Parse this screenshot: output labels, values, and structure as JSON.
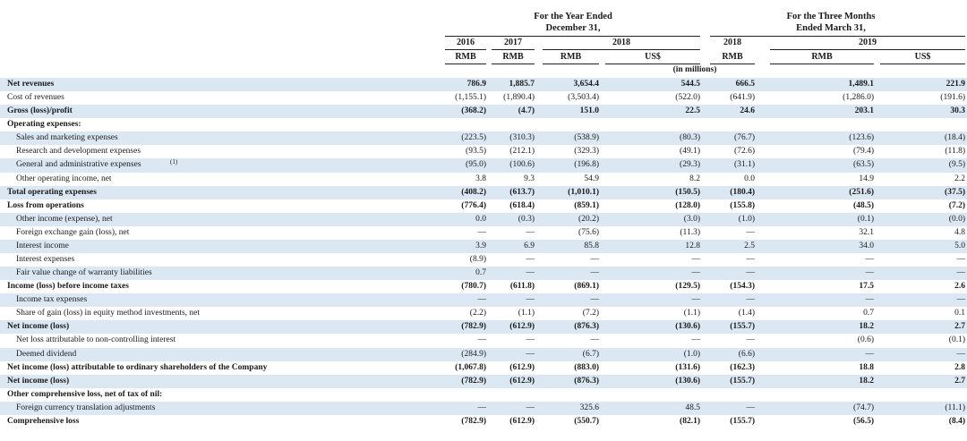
{
  "header": {
    "year_group": [
      "For the Year Ended",
      "December 31,"
    ],
    "quarter_group": [
      "For the Three Months",
      "Ended March 31,"
    ],
    "year_2018": "2018",
    "quarter_2019": "2019",
    "columns": [
      {
        "year": "2016",
        "currency": "RMB"
      },
      {
        "year": "2017",
        "currency": "RMB"
      },
      {
        "year": "",
        "currency": "RMB"
      },
      {
        "year": "",
        "currency": "US$"
      },
      {
        "year": "2018",
        "currency": "RMB"
      },
      {
        "year": "",
        "currency": "RMB"
      },
      {
        "year": "",
        "currency": "US$"
      }
    ],
    "units": "(in millions)"
  },
  "rows": [
    {
      "label": "Net revenues",
      "values": [
        "786.9",
        "1,885.7",
        "3,654.4",
        "544.5",
        "666.5",
        "1,489.1",
        "221.9"
      ],
      "bold": true,
      "shade": true
    },
    {
      "label": "Cost of revenues",
      "values": [
        "(1,155.1)",
        "(1,890.4)",
        "(3,503.4)",
        "(522.0)",
        "(641.9)",
        "(1,286.0)",
        "(191.6)"
      ]
    },
    {
      "label": "Gross (loss)/profit",
      "values": [
        "(368.2)",
        "(4.7)",
        "151.0",
        "22.5",
        "24.6",
        "203.1",
        "30.3"
      ],
      "bold": true,
      "shade": true
    },
    {
      "label": "Operating expenses:",
      "values": [
        "",
        "",
        "",
        "",
        "",
        "",
        ""
      ],
      "bold": true
    },
    {
      "label": "Sales and marketing expenses",
      "values": [
        "(223.5)",
        "(310.3)",
        "(538.9)",
        "(80.3)",
        "(76.7)",
        "(123.6)",
        "(18.4)"
      ],
      "indent": true,
      "shade": true
    },
    {
      "label": "Research and development expenses",
      "values": [
        "(93.5)",
        "(212.1)",
        "(329.3)",
        "(49.1)",
        "(72.6)",
        "(79.4)",
        "(11.8)"
      ],
      "indent": true
    },
    {
      "label": "General and administrative expenses",
      "note": "(1)",
      "values": [
        "(95.0)",
        "(100.6)",
        "(196.8)",
        "(29.3)",
        "(31.1)",
        "(63.5)",
        "(9.5)"
      ],
      "indent": true,
      "shade": true
    },
    {
      "label": "Other operating income, net",
      "values": [
        "3.8",
        "9.3",
        "54.9",
        "8.2",
        "0.0",
        "14.9",
        "2.2"
      ],
      "indent": true
    },
    {
      "label": "Total operating expenses",
      "values": [
        "(408.2)",
        "(613.7)",
        "(1,010.1)",
        "(150.5)",
        "(180.4)",
        "(251.6)",
        "(37.5)"
      ],
      "bold": true,
      "shade": true
    },
    {
      "label": "Loss from operations",
      "values": [
        "(776.4)",
        "(618.4)",
        "(859.1)",
        "(128.0)",
        "(155.8)",
        "(48.5)",
        "(7.2)"
      ],
      "bold": true
    },
    {
      "label": "Other income (expense), net",
      "values": [
        "0.0",
        "(0.3)",
        "(20.2)",
        "(3.0)",
        "(1.0)",
        "(0.1)",
        "(0.0)"
      ],
      "indent": true,
      "shade": true
    },
    {
      "label": "Foreign exchange gain (loss), net",
      "values": [
        "—",
        "—",
        "(75.6)",
        "(11.3)",
        "—",
        "32.1",
        "4.8"
      ],
      "indent": true
    },
    {
      "label": "Interest income",
      "values": [
        "3.9",
        "6.9",
        "85.8",
        "12.8",
        "2.5",
        "34.0",
        "5.0"
      ],
      "indent": true,
      "shade": true
    },
    {
      "label": "Interest expenses",
      "values": [
        "(8.9)",
        "—",
        "—",
        "—",
        "—",
        "—",
        "—"
      ],
      "indent": true
    },
    {
      "label": "Fair value change of warranty liabilities",
      "values": [
        "0.7",
        "—",
        "—",
        "—",
        "—",
        "—",
        "—"
      ],
      "indent": true,
      "shade": true
    },
    {
      "label": "Income (loss) before income taxes",
      "values": [
        "(780.7)",
        "(611.8)",
        "(869.1)",
        "(129.5)",
        "(154.3)",
        "17.5",
        "2.6"
      ],
      "bold": true
    },
    {
      "label": "Income tax expenses",
      "values": [
        "—",
        "—",
        "—",
        "—",
        "—",
        "—",
        "—"
      ],
      "indent": true,
      "shade": true
    },
    {
      "label": "Share of gain (loss) in equity method investments, net",
      "values": [
        "(2.2)",
        "(1.1)",
        "(7.2)",
        "(1.1)",
        "(1.4)",
        "0.7",
        "0.1"
      ],
      "indent": true
    },
    {
      "label": "Net income (loss)",
      "values": [
        "(782.9)",
        "(612.9)",
        "(876.3)",
        "(130.6)",
        "(155.7)",
        "18.2",
        "2.7"
      ],
      "bold": true,
      "shade": true
    },
    {
      "label": "Net loss attributable to non-controlling interest",
      "values": [
        "—",
        "—",
        "—",
        "—",
        "—",
        "(0.6)",
        "(0.1)"
      ],
      "indent": true
    },
    {
      "label": "Deemed dividend",
      "values": [
        "(284.9)",
        "—",
        "(6.7)",
        "(1.0)",
        "(6.6)",
        "—",
        "—"
      ],
      "indent": true,
      "shade": true
    },
    {
      "label": "Net income (loss) attributable to ordinary shareholders of the Company",
      "values": [
        "(1,067.8)",
        "(612.9)",
        "(883.0)",
        "(131.6)",
        "(162.3)",
        "18.8",
        "2.8"
      ],
      "bold": true
    },
    {
      "label": "Net income (loss)",
      "values": [
        "(782.9)",
        "(612.9)",
        "(876.3)",
        "(130.6)",
        "(155.7)",
        "18.2",
        "2.7"
      ],
      "bold": true,
      "shade": true
    },
    {
      "label": "Other comprehensive loss, net of tax of nil:",
      "values": [
        "",
        "",
        "",
        "",
        "",
        "",
        ""
      ],
      "bold": true
    },
    {
      "label": "Foreign currency translation adjustments",
      "values": [
        "—",
        "—",
        "325.6",
        "48.5",
        "—",
        "(74.7)",
        "(11.1)"
      ],
      "indent": true,
      "shade": true
    },
    {
      "label": "Comprehensive loss",
      "values": [
        "(782.9)",
        "(612.9)",
        "(550.7)",
        "(82.1)",
        "(155.7)",
        "(56.5)",
        "(8.4)"
      ],
      "bold": true
    }
  ]
}
